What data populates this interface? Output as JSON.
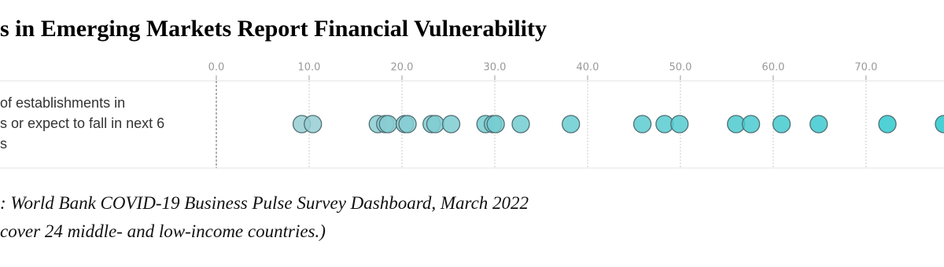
{
  "chart_data": {
    "type": "strip",
    "title": "s in Emerging Markets Report Financial Vulnerability",
    "categories": [
      [
        "of establishments in",
        "s or expect to fall in next 6",
        "s"
      ]
    ],
    "values": [
      [
        9.2,
        10.4,
        17.4,
        18.2,
        18.5,
        20.3,
        20.6,
        23.2,
        23.6,
        25.3,
        29.0,
        29.8,
        30.1,
        32.8,
        38.2,
        45.9,
        48.3,
        49.9,
        56.0,
        57.6,
        60.9,
        64.9,
        72.3,
        78.4
      ]
    ],
    "xlim": [
      0,
      78.4
    ],
    "xticks": [
      {
        "value": 0,
        "label": "0.0"
      },
      {
        "value": 10,
        "label": "10.0"
      },
      {
        "value": 20,
        "label": "20.0"
      },
      {
        "value": 30,
        "label": "30.0"
      },
      {
        "value": 40,
        "label": "40.0"
      },
      {
        "value": 50,
        "label": "50.0"
      },
      {
        "value": 60,
        "label": "60.0"
      },
      {
        "value": 70,
        "label": "70.0"
      }
    ],
    "grid": true,
    "color_range": [
      "#a6cfd3",
      "#27c8ce"
    ],
    "notes": [
      ": World Bank COVID-19 Business Pulse Survey Dashboard, March 2022",
      "cover 24 middle- and low-income countries.)"
    ]
  }
}
